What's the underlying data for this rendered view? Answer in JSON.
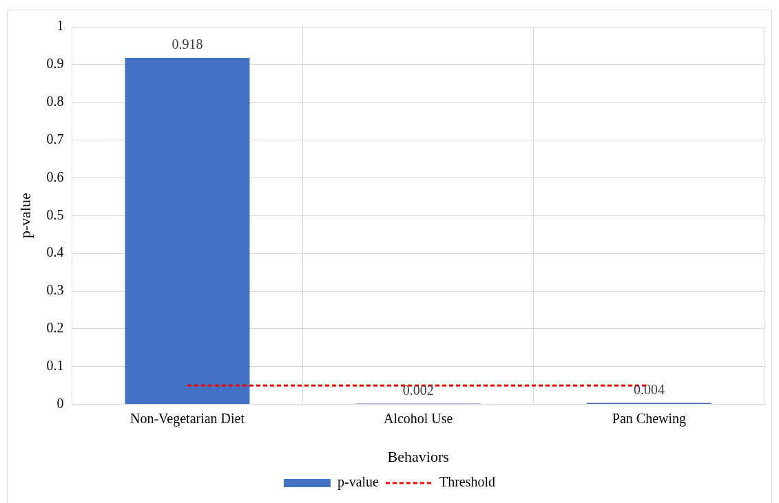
{
  "chart_data": {
    "type": "bar",
    "xlabel": "Behaviors",
    "ylabel": "p-value",
    "categories": [
      "Non-Vegetarian Diet",
      "Alcohol Use",
      "Pan Chewing"
    ],
    "series": [
      {
        "name": "p-value",
        "color": "#4472c4",
        "values": [
          0.918,
          0.002,
          0.004
        ],
        "value_labels": [
          "0.918",
          "0.002",
          "0.004"
        ]
      },
      {
        "name": "Threshold",
        "type": "line",
        "color": "#ff0000",
        "values": [
          0.05,
          0.05,
          0.05
        ],
        "line_style": "dashed",
        "marker": "none"
      }
    ],
    "ylim": [
      0,
      1
    ],
    "yticks": [
      0,
      0.1,
      0.2,
      0.3,
      0.4,
      0.5,
      0.6,
      0.7,
      0.8,
      0.9,
      1
    ],
    "grid": true,
    "legend": "bottom"
  }
}
